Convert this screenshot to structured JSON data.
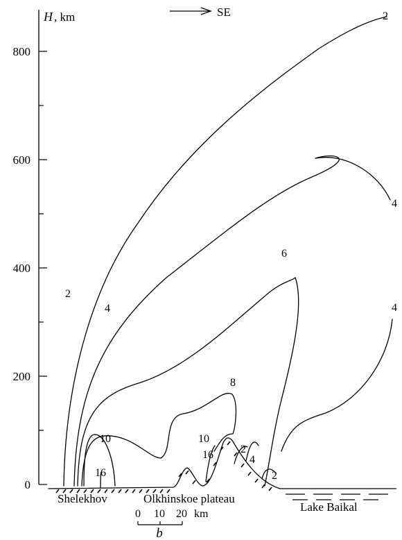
{
  "y_axis": {
    "label_h": "H",
    "label_unit": ", km",
    "ticks": [
      "0",
      "200",
      "400",
      "600",
      "800"
    ]
  },
  "direction": {
    "label": "SE"
  },
  "isolines": {
    "c2_outer": "2",
    "c2_left": "2",
    "c4_right_upper": "4",
    "c4_left": "4",
    "c6": "6",
    "c4_right_lower": "4",
    "c8": "8",
    "c10_left": "10",
    "c10_mid": "10",
    "c16_left": "16",
    "c16_mid": "16",
    "c2_small": "2",
    "c4_small": "4",
    "c2_baikal": "2"
  },
  "places": {
    "shelekhov": "Shelekhov",
    "olkhinskoe": "Olkhinskoe plateau",
    "baikal": "Lake Baikal"
  },
  "scale_bar": {
    "t0": "0",
    "t10": "10",
    "t20": "20",
    "unit": "km"
  },
  "panel_label": "b"
}
